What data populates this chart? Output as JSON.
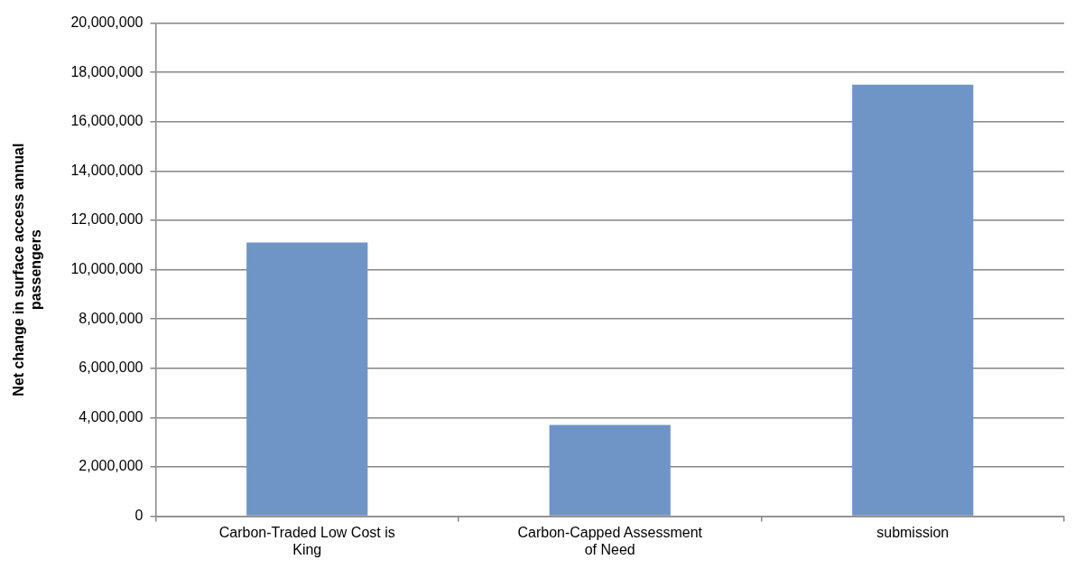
{
  "chart_data": {
    "type": "bar",
    "ylabel": "Net change in surface access annual passengers",
    "categories": [
      "Carbon-Traded Low Cost is King",
      "Carbon-Capped Assessment of Need",
      "submission"
    ],
    "values": [
      11100000,
      3700000,
      17500000
    ],
    "color": "#6f94c6",
    "ylim": [
      0,
      20000000
    ],
    "yticks": [
      0,
      {
        "value": 2000000,
        "label": "2,000,000"
      },
      {
        "value": 4000000,
        "label": "4,000,000"
      },
      {
        "value": 6000000,
        "label": "6,000,000"
      },
      {
        "value": 8000000,
        "label": "8,000,000"
      },
      {
        "value": 10000000,
        "label": "10,000,000"
      },
      {
        "value": 12000000,
        "label": "12,000,000"
      },
      {
        "value": 14000000,
        "label": "14,000,000"
      },
      {
        "value": 16000000,
        "label": "16,000,000"
      },
      {
        "value": 18000000,
        "label": "18,000,000"
      },
      {
        "value": 20000000,
        "label": "20,000,000"
      }
    ],
    "grid": "y",
    "legend": false
  }
}
